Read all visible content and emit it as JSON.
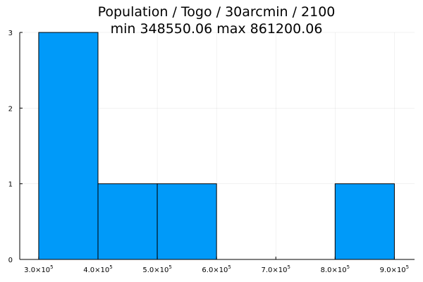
{
  "chart_data": {
    "type": "bar",
    "title_line1": "Population / Togo / 30arcmin / 2100",
    "title_line2": "min 348550.06  max 861200.06",
    "xlabel": "",
    "ylabel": "",
    "xlim": [
      268000,
      934000
    ],
    "ylim": [
      0,
      3
    ],
    "xticks": [
      {
        "value": 300000,
        "mantissa": "3.0",
        "exp": "5"
      },
      {
        "value": 400000,
        "mantissa": "4.0",
        "exp": "5"
      },
      {
        "value": 500000,
        "mantissa": "5.0",
        "exp": "5"
      },
      {
        "value": 600000,
        "mantissa": "6.0",
        "exp": "5"
      },
      {
        "value": 700000,
        "mantissa": "7.0",
        "exp": "5"
      },
      {
        "value": 800000,
        "mantissa": "8.0",
        "exp": "5"
      },
      {
        "value": 900000,
        "mantissa": "9.0",
        "exp": "5"
      }
    ],
    "yticks": [
      {
        "value": 0,
        "label": "0"
      },
      {
        "value": 1,
        "label": "1"
      },
      {
        "value": 2,
        "label": "2"
      },
      {
        "value": 3,
        "label": "3"
      }
    ],
    "bins": [
      {
        "start": 300000,
        "end": 400000,
        "count": 3
      },
      {
        "start": 400000,
        "end": 500000,
        "count": 1
      },
      {
        "start": 500000,
        "end": 600000,
        "count": 1
      },
      {
        "start": 600000,
        "end": 700000,
        "count": 0
      },
      {
        "start": 700000,
        "end": 800000,
        "count": 0
      },
      {
        "start": 800000,
        "end": 900000,
        "count": 1
      }
    ],
    "bar_color": "#009af9",
    "grid": true,
    "legend": "none"
  }
}
